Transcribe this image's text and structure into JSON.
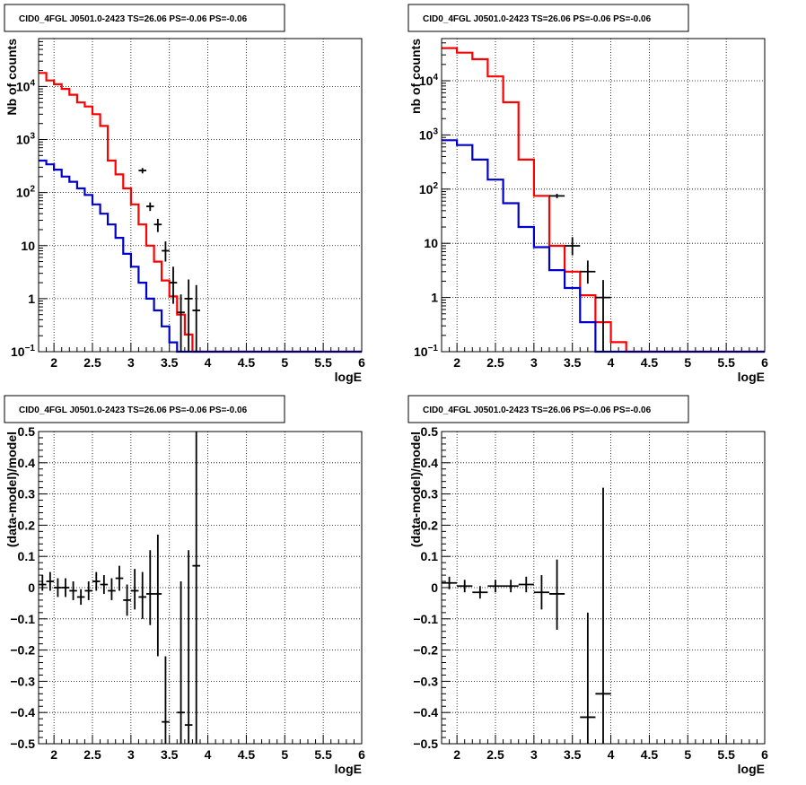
{
  "colors": {
    "data": "#000000",
    "model_total": "#ff0000",
    "model_source": "#0000cc"
  },
  "chart_data": [
    {
      "type": "line",
      "title": "CID0_4FGL J0501.0-2423 TS=26.06 PS=-0.06 PS=-0.06",
      "xlabel": "logE",
      "ylabel": "Nb of counts",
      "xlim": [
        1.8,
        6.0
      ],
      "ylim": [
        0.1,
        80000
      ],
      "ylog": true,
      "grid": true,
      "xticks": [
        "2",
        "2.5",
        "3",
        "3.5",
        "4",
        "4.5",
        "5",
        "5.5",
        "6"
      ],
      "yticks": [
        {
          "label": "10^-1",
          "value": 0.1
        },
        {
          "label": "1",
          "value": 1
        },
        {
          "label": "10",
          "value": 10
        },
        {
          "label": "10^2",
          "value": 100
        },
        {
          "label": "10^3",
          "value": 1000
        },
        {
          "label": "10^4",
          "value": 10000
        }
      ],
      "bin_edges": [
        1.8,
        1.9,
        2.0,
        2.1,
        2.2,
        2.3,
        2.4,
        2.5,
        2.6,
        2.7,
        2.8,
        2.9,
        3.0,
        3.1,
        3.2,
        3.3,
        3.4,
        3.5,
        3.6,
        3.7,
        3.8,
        3.9,
        4.0,
        4.1,
        4.2,
        4.3,
        4.4,
        4.5,
        4.6,
        4.7,
        4.8,
        4.9,
        5.0,
        5.1,
        5.2,
        5.3,
        5.4,
        5.5,
        5.6,
        5.7,
        5.8,
        5.9,
        6.0
      ],
      "series": [
        {
          "key": "model_total",
          "style": "step",
          "values": [
            18000,
            13000,
            11000,
            9000,
            7000,
            5000,
            4200,
            3000,
            1800,
            400,
            220,
            120,
            60,
            25,
            10,
            5,
            2.2,
            1.1,
            0.5,
            0.21,
            0.1,
            0.1,
            0.1,
            0.1,
            0.1,
            0.1,
            0.1,
            0.1,
            0.1,
            0.1,
            0.1,
            0.1,
            0.1,
            0.1,
            0.1,
            0.1,
            0.1,
            0.1,
            0.1,
            0.1,
            0.1,
            0.1
          ]
        },
        {
          "key": "model_source",
          "style": "step",
          "values": [
            400,
            340,
            270,
            200,
            160,
            120,
            90,
            60,
            40,
            25,
            14,
            7,
            4,
            2,
            1,
            0.6,
            0.3,
            0.15,
            0.1,
            0.1,
            0.1,
            0.1,
            0.1,
            0.1,
            0.1,
            0.1,
            0.1,
            0.1,
            0.1,
            0.1,
            0.1,
            0.1,
            0.1,
            0.1,
            0.1,
            0.1,
            0.1,
            0.1,
            0.1,
            0.1,
            0.1,
            0.1
          ]
        },
        {
          "key": "data",
          "style": "errorbar",
          "points": [
            {
              "x": 3.15,
              "y": 260,
              "xerr": 0.05,
              "ylo": 230,
              "yhi": 290
            },
            {
              "x": 3.25,
              "y": 55,
              "xerr": 0.05,
              "ylo": 45,
              "yhi": 65
            },
            {
              "x": 3.35,
              "y": 25,
              "xerr": 0.05,
              "ylo": 18,
              "yhi": 32
            },
            {
              "x": 3.45,
              "y": 8,
              "xerr": 0.05,
              "ylo": 5,
              "yhi": 12
            },
            {
              "x": 3.55,
              "y": 2,
              "xerr": 0.05,
              "ylo": 0.8,
              "yhi": 4
            },
            {
              "x": 3.65,
              "y": 0.55,
              "xerr": 0.05,
              "ylo": 0.1,
              "yhi": 1.2
            },
            {
              "x": 3.75,
              "y": 1.0,
              "xerr": 0.05,
              "ylo": 0.1,
              "yhi": 2.3
            },
            {
              "x": 3.85,
              "y": 0.6,
              "xerr": 0.05,
              "ylo": 0.1,
              "yhi": 1.8
            }
          ]
        }
      ]
    },
    {
      "type": "line",
      "title": "CID0_4FGL J0501.0-2423 TS=26.06 PS=-0.06 PS=-0.06",
      "xlabel": "logE",
      "ylabel": "nb of counts",
      "xlim": [
        1.8,
        6.0
      ],
      "ylim": [
        0.1,
        60000
      ],
      "ylog": true,
      "grid": true,
      "xticks": [
        "2",
        "2.5",
        "3",
        "3.5",
        "4",
        "4.5",
        "5",
        "5.5",
        "6"
      ],
      "yticks": [
        {
          "label": "10^-1",
          "value": 0.1
        },
        {
          "label": "1",
          "value": 1
        },
        {
          "label": "10",
          "value": 10
        },
        {
          "label": "10^2",
          "value": 100
        },
        {
          "label": "10^3",
          "value": 1000
        },
        {
          "label": "10^4",
          "value": 10000
        }
      ],
      "bin_edges": [
        1.8,
        2.0,
        2.2,
        2.4,
        2.6,
        2.8,
        3.0,
        3.2,
        3.4,
        3.6,
        3.8,
        4.0,
        4.2,
        4.4,
        4.6,
        4.8,
        5.0,
        5.2,
        5.4,
        5.6,
        5.8,
        6.0
      ],
      "series": [
        {
          "key": "model_total",
          "style": "step",
          "values": [
            40000,
            33000,
            25000,
            12000,
            4000,
            350,
            75,
            9,
            3,
            1.1,
            0.35,
            0.15,
            0.1,
            0.1,
            0.1,
            0.1,
            0.1,
            0.1,
            0.1,
            0.1,
            0.1
          ]
        },
        {
          "key": "model_source",
          "style": "step",
          "values": [
            800,
            650,
            350,
            150,
            55,
            20,
            8.5,
            3.2,
            1.5,
            0.35,
            0.1,
            0.1,
            0.1,
            0.1,
            0.1,
            0.1,
            0.1,
            0.1,
            0.1,
            0.1,
            0.1
          ]
        },
        {
          "key": "data",
          "style": "errorbar",
          "points": [
            {
              "x": 3.3,
              "y": 75,
              "xerr": 0.1,
              "ylo": 68,
              "yhi": 82
            },
            {
              "x": 3.5,
              "y": 9,
              "xerr": 0.1,
              "ylo": 6,
              "yhi": 13
            },
            {
              "x": 3.7,
              "y": 3,
              "xerr": 0.1,
              "ylo": 1.8,
              "yhi": 4.8
            },
            {
              "x": 3.9,
              "y": 1,
              "xerr": 0.1,
              "ylo": 0.1,
              "yhi": 2.1
            }
          ]
        }
      ]
    },
    {
      "type": "scatter",
      "title": "CID0_4FGL J0501.0-2423 TS=26.06 PS=-0.06 PS=-0.06",
      "xlabel": "logE",
      "ylabel": "(data-model)/model",
      "xlim": [
        1.8,
        6.0
      ],
      "ylim": [
        -0.5,
        0.5
      ],
      "ylog": false,
      "grid": true,
      "xticks": [
        "2",
        "2.5",
        "3",
        "3.5",
        "4",
        "4.5",
        "5",
        "5.5",
        "6"
      ],
      "yticks": [
        {
          "label": "−0.5",
          "value": -0.5
        },
        {
          "label": "−0.4",
          "value": -0.4
        },
        {
          "label": "−0.3",
          "value": -0.3
        },
        {
          "label": "−0.2",
          "value": -0.2
        },
        {
          "label": "−0.1",
          "value": -0.1
        },
        {
          "label": "0",
          "value": 0
        },
        {
          "label": "0.1",
          "value": 0.1
        },
        {
          "label": "0.2",
          "value": 0.2
        },
        {
          "label": "0.3",
          "value": 0.3
        },
        {
          "label": "0.4",
          "value": 0.4
        },
        {
          "label": "0.5",
          "value": 0.5
        }
      ],
      "series": [
        {
          "key": "data",
          "style": "errorbar",
          "points": [
            {
              "x": 1.85,
              "y": 0.01,
              "xerr": 0.05,
              "ylo": -0.01,
              "yhi": 0.04
            },
            {
              "x": 1.95,
              "y": 0.02,
              "xerr": 0.05,
              "ylo": -0.01,
              "yhi": 0.05
            },
            {
              "x": 2.05,
              "y": 0.0,
              "xerr": 0.05,
              "ylo": -0.03,
              "yhi": 0.03
            },
            {
              "x": 2.15,
              "y": 0.0,
              "xerr": 0.05,
              "ylo": -0.03,
              "yhi": 0.03
            },
            {
              "x": 2.25,
              "y": -0.01,
              "xerr": 0.05,
              "ylo": -0.04,
              "yhi": 0.02
            },
            {
              "x": 2.35,
              "y": -0.03,
              "xerr": 0.05,
              "ylo": -0.055,
              "yhi": -0.005
            },
            {
              "x": 2.45,
              "y": -0.01,
              "xerr": 0.05,
              "ylo": -0.04,
              "yhi": 0.02
            },
            {
              "x": 2.55,
              "y": 0.02,
              "xerr": 0.05,
              "ylo": -0.01,
              "yhi": 0.05
            },
            {
              "x": 2.65,
              "y": 0.01,
              "xerr": 0.05,
              "ylo": -0.02,
              "yhi": 0.04
            },
            {
              "x": 2.75,
              "y": -0.01,
              "xerr": 0.05,
              "ylo": -0.04,
              "yhi": 0.03
            },
            {
              "x": 2.85,
              "y": 0.03,
              "xerr": 0.05,
              "ylo": -0.01,
              "yhi": 0.07
            },
            {
              "x": 2.95,
              "y": -0.04,
              "xerr": 0.05,
              "ylo": -0.09,
              "yhi": 0.01
            },
            {
              "x": 3.05,
              "y": -0.01,
              "xerr": 0.05,
              "ylo": -0.07,
              "yhi": 0.06
            },
            {
              "x": 3.15,
              "y": -0.03,
              "xerr": 0.05,
              "ylo": -0.1,
              "yhi": 0.05
            },
            {
              "x": 3.25,
              "y": -0.02,
              "xerr": 0.05,
              "ylo": -0.12,
              "yhi": 0.12
            },
            {
              "x": 3.35,
              "y": -0.02,
              "xerr": 0.05,
              "ylo": -0.22,
              "yhi": 0.17
            },
            {
              "x": 3.45,
              "y": -0.43,
              "xerr": 0.05,
              "ylo": -0.5,
              "yhi": -0.22
            },
            {
              "x": 3.65,
              "y": -0.4,
              "xerr": 0.05,
              "ylo": -0.5,
              "yhi": 0.02
            },
            {
              "x": 3.75,
              "y": -0.44,
              "xerr": 0.05,
              "ylo": -0.5,
              "yhi": 0.12
            },
            {
              "x": 3.85,
              "y": 0.07,
              "xerr": 0.05,
              "ylo": -0.5,
              "yhi": 0.5
            }
          ]
        }
      ]
    },
    {
      "type": "scatter",
      "title": "CID0_4FGL J0501.0-2423 TS=26.06 PS=-0.06 PS=-0.06",
      "xlabel": "logE",
      "ylabel": "(data-model)/model",
      "xlim": [
        1.8,
        6.0
      ],
      "ylim": [
        -0.5,
        0.5
      ],
      "ylog": false,
      "grid": true,
      "xticks": [
        "2",
        "2.5",
        "3",
        "3.5",
        "4",
        "4.5",
        "5",
        "5.5",
        "6"
      ],
      "yticks": [
        {
          "label": "−0.5",
          "value": -0.5
        },
        {
          "label": "−0.4",
          "value": -0.4
        },
        {
          "label": "−0.3",
          "value": -0.3
        },
        {
          "label": "−0.2",
          "value": -0.2
        },
        {
          "label": "−0.1",
          "value": -0.1
        },
        {
          "label": "0",
          "value": 0
        },
        {
          "label": "0.1",
          "value": 0.1
        },
        {
          "label": "0.2",
          "value": 0.2
        },
        {
          "label": "0.3",
          "value": 0.3
        },
        {
          "label": "0.4",
          "value": 0.4
        },
        {
          "label": "0.5",
          "value": 0.5
        }
      ],
      "series": [
        {
          "key": "data",
          "style": "errorbar",
          "points": [
            {
              "x": 1.9,
              "y": 0.015,
              "xerr": 0.1,
              "ylo": -0.005,
              "yhi": 0.035
            },
            {
              "x": 2.1,
              "y": 0.005,
              "xerr": 0.1,
              "ylo": -0.015,
              "yhi": 0.025
            },
            {
              "x": 2.3,
              "y": -0.015,
              "xerr": 0.1,
              "ylo": -0.035,
              "yhi": 0.005
            },
            {
              "x": 2.5,
              "y": 0.005,
              "xerr": 0.1,
              "ylo": -0.015,
              "yhi": 0.025
            },
            {
              "x": 2.7,
              "y": 0.005,
              "xerr": 0.1,
              "ylo": -0.015,
              "yhi": 0.025
            },
            {
              "x": 2.9,
              "y": 0.01,
              "xerr": 0.1,
              "ylo": -0.015,
              "yhi": 0.035
            },
            {
              "x": 3.1,
              "y": -0.015,
              "xerr": 0.1,
              "ylo": -0.07,
              "yhi": 0.04
            },
            {
              "x": 3.3,
              "y": -0.02,
              "xerr": 0.1,
              "ylo": -0.135,
              "yhi": 0.09
            },
            {
              "x": 3.7,
              "y": -0.415,
              "xerr": 0.1,
              "ylo": -0.5,
              "yhi": -0.08
            },
            {
              "x": 3.9,
              "y": -0.34,
              "xerr": 0.1,
              "ylo": -0.5,
              "yhi": 0.32
            }
          ]
        }
      ]
    }
  ]
}
